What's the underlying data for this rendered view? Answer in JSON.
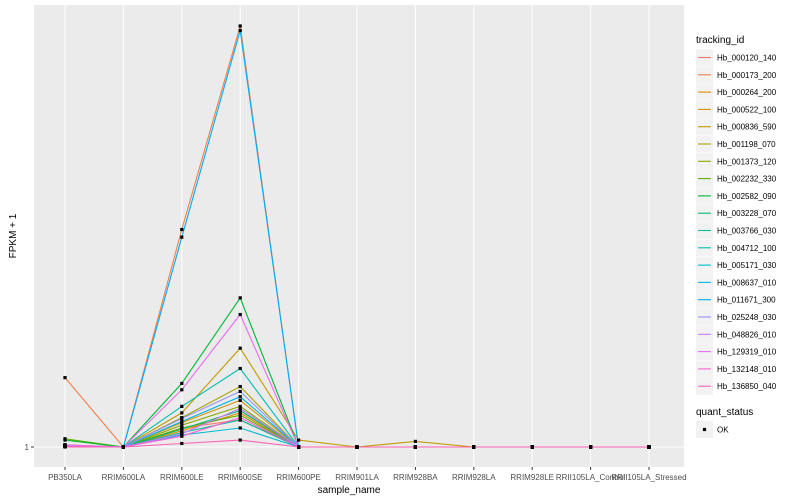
{
  "chart_data": {
    "type": "line",
    "title": "",
    "xlabel": "sample_name",
    "ylabel": "FPKM + 1",
    "y_scale": "log",
    "y_tick_labels": [
      "1"
    ],
    "grid": true,
    "legend_position": "right",
    "categories": [
      "PB350LA",
      "RRIM600LA",
      "RRIM600LE",
      "RRIM600SE",
      "RRIM600PE",
      "RRIM901LA",
      "RRIM928BA",
      "RRIM928LA",
      "RRIM928LE",
      "RRII105LA_Control",
      "RRII105LA_Stressed"
    ],
    "series": [
      {
        "name": "Hb_000120_140",
        "color": "#F8766D",
        "values": [
          1.02,
          1,
          1.3,
          1.45,
          1,
          1,
          1,
          1,
          1,
          1,
          1
        ]
      },
      {
        "name": "Hb_000173_200",
        "color": "#EF7F49",
        "values": [
          2.6,
          1,
          20,
          330,
          1,
          1,
          1,
          1,
          1,
          1,
          1
        ]
      },
      {
        "name": "Hb_000264_200",
        "color": "#E38900",
        "values": [
          1.03,
          1,
          1.25,
          1.6,
          1,
          1,
          1,
          1,
          1,
          1,
          1
        ]
      },
      {
        "name": "Hb_000522_100",
        "color": "#D49200",
        "values": [
          1.02,
          1,
          1.4,
          1.9,
          1,
          1,
          1,
          1,
          1,
          1,
          1
        ]
      },
      {
        "name": "Hb_000836_590",
        "color": "#C09B00",
        "values": [
          1.03,
          1,
          1.6,
          3.9,
          1.1,
          1,
          1.08,
          1,
          1,
          1,
          1
        ]
      },
      {
        "name": "Hb_001198_070",
        "color": "#A9A400",
        "values": [
          1.02,
          1,
          1.5,
          2.3,
          1,
          1,
          1,
          1,
          1,
          1,
          1
        ]
      },
      {
        "name": "Hb_001373_120",
        "color": "#8BAB00",
        "values": [
          1.02,
          1,
          1.35,
          1.75,
          1,
          1,
          1,
          1,
          1,
          1,
          1
        ]
      },
      {
        "name": "Hb_002232_330",
        "color": "#5DB100",
        "values": [
          1.12,
          1,
          1.3,
          1.55,
          1,
          1,
          1,
          1,
          1,
          1,
          1
        ]
      },
      {
        "name": "Hb_002582_090",
        "color": "#00B636",
        "values": [
          1.1,
          1,
          2.4,
          7.8,
          1,
          1,
          1,
          1,
          1,
          1,
          1
        ]
      },
      {
        "name": "Hb_003228_070",
        "color": "#00BA6E",
        "values": [
          1.01,
          1,
          1.28,
          1.65,
          1,
          1,
          1,
          1,
          1,
          1,
          1
        ]
      },
      {
        "name": "Hb_003766_030",
        "color": "#00BC94",
        "values": [
          1.01,
          1,
          1.22,
          1.45,
          1,
          1,
          1,
          1,
          1,
          1,
          1
        ]
      },
      {
        "name": "Hb_004712_100",
        "color": "#00BDB3",
        "values": [
          1.02,
          1,
          1.75,
          2.95,
          1,
          1,
          1,
          1,
          1,
          1,
          1
        ]
      },
      {
        "name": "Hb_005171_030",
        "color": "#00BBCF",
        "values": [
          1.01,
          1,
          1.18,
          1.3,
          1,
          1,
          1,
          1,
          1,
          1,
          1
        ]
      },
      {
        "name": "Hb_008637_010",
        "color": "#00B6E7",
        "values": [
          1.01,
          1,
          1.42,
          2.0,
          1,
          1,
          1,
          1,
          1,
          1,
          1
        ]
      },
      {
        "name": "Hb_011671_300",
        "color": "#00AEFA",
        "values": [
          1.02,
          1,
          18,
          310,
          1,
          1,
          1,
          1,
          1,
          1,
          1
        ]
      },
      {
        "name": "Hb_025248_030",
        "color": "#9590FF",
        "values": [
          1.01,
          1,
          1.48,
          2.15,
          1,
          1,
          1,
          1,
          1,
          1,
          1
        ]
      },
      {
        "name": "Hb_048826_010",
        "color": "#C77CFF",
        "values": [
          1.01,
          1,
          1.2,
          1.7,
          1,
          1,
          1,
          1,
          1,
          1,
          1
        ]
      },
      {
        "name": "Hb_129319_010",
        "color": "#E96BF0",
        "values": [
          1.03,
          1,
          2.2,
          6.2,
          1,
          1,
          1,
          1,
          1,
          1,
          1
        ]
      },
      {
        "name": "Hb_132148_010",
        "color": "#FA62D5",
        "values": [
          1.01,
          1,
          1.16,
          1.5,
          1,
          1,
          1,
          1,
          1,
          1,
          1
        ]
      },
      {
        "name": "Hb_136850_040",
        "color": "#FF63B4",
        "values": [
          1.0,
          1,
          1.05,
          1.1,
          1,
          1,
          1,
          1,
          1,
          1,
          1
        ]
      }
    ]
  },
  "legend": {
    "title": "tracking_id",
    "quant_title": "quant_status",
    "quant_items": [
      "OK"
    ]
  },
  "style": {
    "panel_bg": "#EBEBEB",
    "grid_color": "#FFFFFF",
    "point_color": "#000000"
  }
}
